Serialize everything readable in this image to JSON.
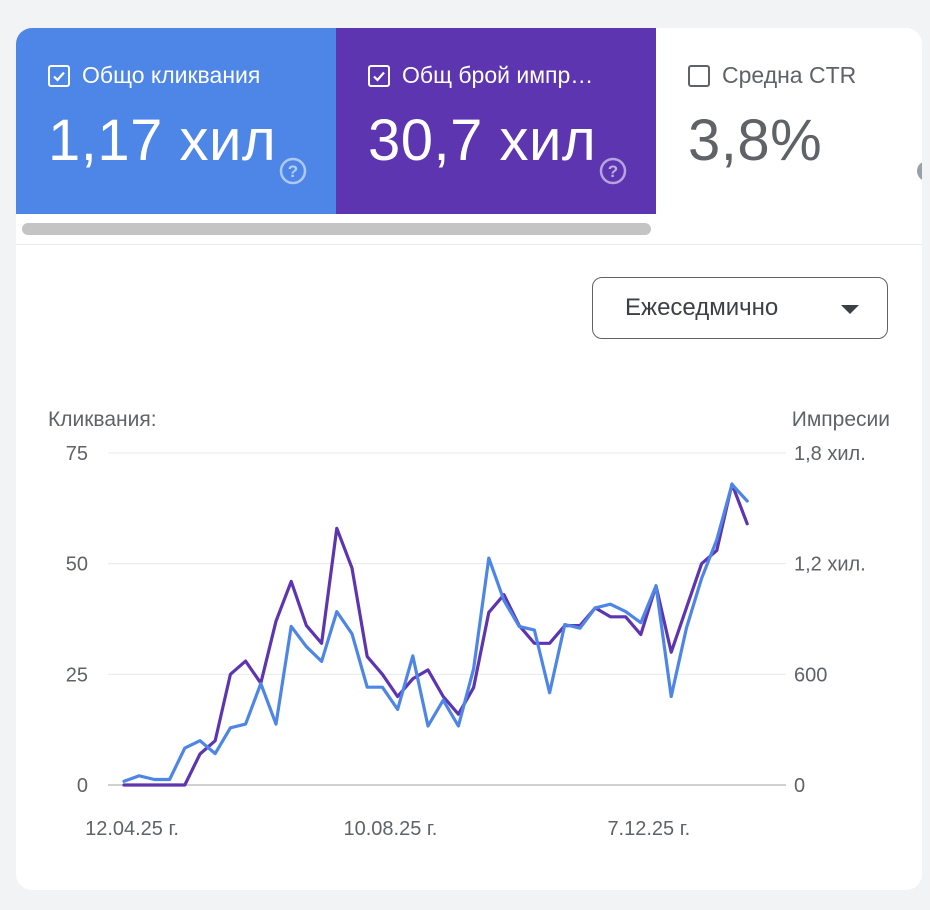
{
  "metrics": [
    {
      "label": "Общо кликвания",
      "value": "1,17 хил",
      "checked": true,
      "color": "#4e86e8"
    },
    {
      "label": "Общ брой импр…",
      "value": "30,7 хил",
      "checked": true,
      "color": "#5e35b1"
    },
    {
      "label": "Средна CTR",
      "value": "3,8%",
      "checked": false
    }
  ],
  "period": {
    "selected": "Ежеседмично"
  },
  "icons": {
    "help": "help-icon",
    "dropdown": "chevron-down-icon",
    "check": "check-icon"
  },
  "chart_data": {
    "type": "line",
    "ylabel_left": "Кликвания:",
    "ylabel_right": "Импресии",
    "left_axis": {
      "range": [
        0,
        75
      ],
      "ticks": [
        "0",
        "25",
        "50",
        "75"
      ]
    },
    "right_axis": {
      "range": [
        0,
        1800
      ],
      "ticks": [
        "0",
        "600",
        "1,2 хил.",
        "1,8 хил."
      ]
    },
    "x_ticks": [
      {
        "index": 0,
        "label": "12.04.25 г."
      },
      {
        "index": 17,
        "label": "10.08.25 г."
      },
      {
        "index": 34,
        "label": "7.12.25 г."
      }
    ],
    "grid": true,
    "series": [
      {
        "axis": "left",
        "color": "#5e35b1",
        "values": [
          0,
          0,
          0,
          0,
          0,
          7,
          10,
          25,
          28,
          23,
          37,
          46,
          36,
          32,
          58,
          49,
          29,
          25,
          20,
          24,
          26,
          20,
          16,
          22,
          39,
          43,
          36,
          32,
          32,
          36,
          36,
          40,
          38,
          38,
          34,
          45,
          30,
          40,
          50,
          53,
          68,
          59
        ]
      },
      {
        "axis": "right",
        "color": "#4e86e8",
        "values": [
          20,
          50,
          30,
          30,
          200,
          240,
          170,
          310,
          330,
          550,
          330,
          860,
          750,
          670,
          940,
          820,
          530,
          530,
          410,
          700,
          320,
          460,
          320,
          630,
          1230,
          1000,
          860,
          840,
          500,
          870,
          850,
          960,
          980,
          940,
          880,
          1080,
          480,
          850,
          1120,
          1330,
          1630,
          1540
        ]
      }
    ]
  }
}
